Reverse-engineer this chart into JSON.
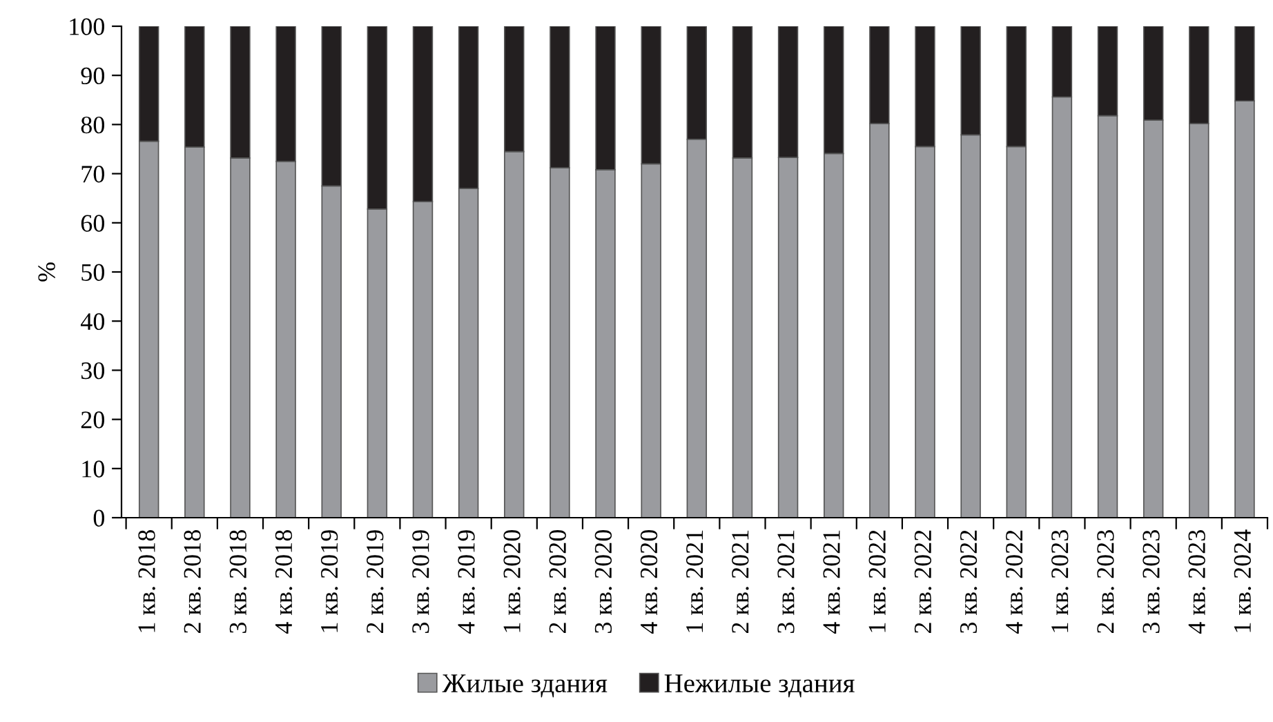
{
  "chart_data": {
    "type": "bar",
    "stacked": true,
    "ylabel": "%",
    "categories": [
      "1 кв. 2018",
      "2 кв. 2018",
      "3 кв. 2018",
      "4 кв. 2018",
      "1 кв. 2019",
      "2 кв. 2019",
      "3 кв. 2019",
      "4 кв. 2019",
      "1 кв. 2020",
      "2 кв. 2020",
      "3 кв. 2020",
      "4 кв. 2020",
      "1 кв. 2021",
      "2 кв. 2021",
      "3 кв. 2021",
      "4 кв. 2021",
      "1 кв. 2022",
      "2 кв. 2022",
      "3 кв. 2022",
      "4 кв. 2022",
      "1 кв. 2023",
      "2 кв. 2023",
      "3 кв. 2023",
      "4 кв. 2023",
      "1 кв. 2024"
    ],
    "series": [
      {
        "name": "Жилые здания",
        "color": "#9a9b9f",
        "values": [
          76.6,
          75.4,
          73.2,
          72.5,
          67.5,
          62.8,
          64.3,
          67.0,
          74.5,
          71.2,
          70.8,
          72.0,
          77.0,
          73.2,
          73.3,
          74.1,
          80.2,
          75.5,
          77.9,
          75.5,
          85.6,
          81.8,
          80.9,
          80.2,
          84.8
        ]
      },
      {
        "name": "Нежилые здания",
        "color": "#231f20",
        "values": [
          23.4,
          24.6,
          26.8,
          27.5,
          32.5,
          37.2,
          35.7,
          33.0,
          25.5,
          28.8,
          29.2,
          28.0,
          23.0,
          26.8,
          26.7,
          25.9,
          19.8,
          24.5,
          22.1,
          24.5,
          14.4,
          18.2,
          19.1,
          19.8,
          15.2
        ]
      }
    ],
    "ylim": [
      0,
      100
    ],
    "yticks": [
      0,
      10,
      20,
      30,
      40,
      50,
      60,
      70,
      80,
      90,
      100
    ],
    "grid": false,
    "legend": "bottom"
  }
}
